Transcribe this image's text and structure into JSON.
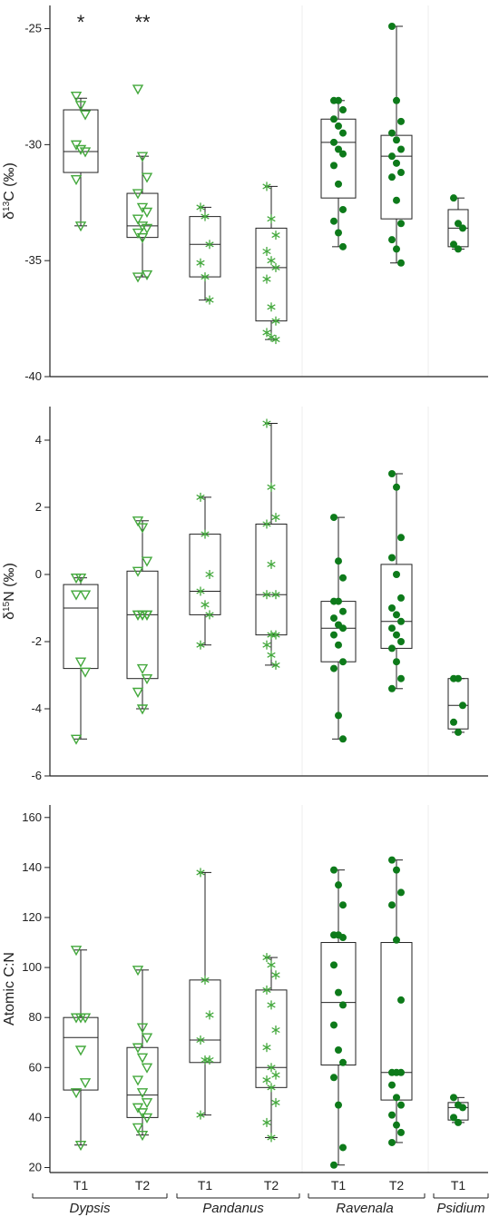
{
  "colors": {
    "light_green": "#43a83c",
    "dark_green": "#0d7a1a",
    "axis": "#222222",
    "box": "#222222",
    "divider_shade": "#ededed"
  },
  "categories": [
    {
      "time": "T1",
      "genus": "Dypsis",
      "marker": "triangle",
      "color": "light_green"
    },
    {
      "time": "T2",
      "genus": "Dypsis",
      "marker": "triangle",
      "color": "light_green"
    },
    {
      "time": "T1",
      "genus": "Pandanus",
      "marker": "asterisk",
      "color": "light_green"
    },
    {
      "time": "T2",
      "genus": "Pandanus",
      "marker": "asterisk",
      "color": "light_green"
    },
    {
      "time": "T1",
      "genus": "Ravenala",
      "marker": "dot",
      "color": "dark_green"
    },
    {
      "time": "T2",
      "genus": "Ravenala",
      "marker": "dot",
      "color": "dark_green"
    },
    {
      "time": "T1",
      "genus": "Psidium",
      "marker": "dot",
      "color": "dark_green"
    }
  ],
  "x_axis": {
    "time_labels": [
      "T1",
      "T2",
      "T1",
      "T2",
      "T1",
      "T2",
      "T1"
    ],
    "genus_labels": [
      "Dypsis",
      "Pandanus",
      "Ravenala",
      "Psidium"
    ]
  },
  "chart_data": [
    {
      "type": "box",
      "ylabel": "δ13C (‰)",
      "ylabel_main": "δ",
      "ylabel_sup": "13",
      "ylabel_rest": "C (‰)",
      "ylim": [
        -40,
        -24
      ],
      "ticks": [
        -25,
        -30,
        -35,
        -40
      ],
      "tick_labels": [
        "-25",
        "-30",
        "-35",
        "-40"
      ],
      "annotations": [
        "*",
        "**"
      ],
      "boxes": [
        {
          "min": -33.5,
          "q1": -31.2,
          "median": -30.3,
          "q3": -28.5,
          "max": -28.0,
          "points": [
            -27.9,
            -28.3,
            -28.7,
            -30.0,
            -30.2,
            -30.3,
            -31.5,
            -33.5
          ]
        },
        {
          "min": -35.7,
          "q1": -34.0,
          "median": -33.5,
          "q3": -32.1,
          "max": -30.5,
          "points": [
            -27.6,
            -30.5,
            -31.4,
            -32.1,
            -32.7,
            -32.9,
            -33.2,
            -33.5,
            -33.6,
            -33.8,
            -34.0,
            -35.6,
            -35.7
          ]
        },
        {
          "min": -36.7,
          "q1": -35.7,
          "median": -34.3,
          "q3": -33.1,
          "max": -32.7,
          "points": [
            -32.7,
            -33.1,
            -34.3,
            -35.1,
            -35.7,
            -36.7
          ]
        },
        {
          "min": -38.4,
          "q1": -37.6,
          "median": -35.3,
          "q3": -33.6,
          "max": -31.8,
          "points": [
            -31.8,
            -33.2,
            -33.9,
            -34.6,
            -35.0,
            -35.3,
            -35.8,
            -37.0,
            -37.6,
            -38.1,
            -38.3,
            -38.4
          ]
        },
        {
          "min": -34.4,
          "q1": -32.3,
          "median": -29.9,
          "q3": -28.9,
          "max": -28.1,
          "points": [
            -28.1,
            -28.1,
            -28.5,
            -28.9,
            -29.2,
            -29.5,
            -29.9,
            -30.2,
            -30.4,
            -30.9,
            -31.7,
            -32.8,
            -33.3,
            -33.8,
            -34.4
          ]
        },
        {
          "min": -35.1,
          "q1": -33.2,
          "median": -30.5,
          "q3": -29.6,
          "max": -24.9,
          "points": [
            -24.9,
            -28.1,
            -29.0,
            -29.5,
            -29.8,
            -30.2,
            -30.5,
            -30.8,
            -31.2,
            -31.4,
            -32.4,
            -33.4,
            -34.1,
            -34.5,
            -35.1
          ]
        },
        {
          "min": -34.5,
          "q1": -34.4,
          "median": -33.6,
          "q3": -32.8,
          "max": -32.3,
          "points": [
            -32.3,
            -33.4,
            -33.6,
            -34.3,
            -34.5
          ]
        }
      ]
    },
    {
      "type": "box",
      "ylabel": "δ15N (‰)",
      "ylabel_main": "δ",
      "ylabel_sup": "15",
      "ylabel_rest": "N (‰)",
      "ylim": [
        -6,
        5
      ],
      "ticks": [
        4,
        2,
        0,
        -2,
        -4,
        -6
      ],
      "tick_labels": [
        "4",
        "2",
        "0",
        "-2",
        "-4",
        "-6"
      ],
      "boxes": [
        {
          "min": -4.9,
          "q1": -2.8,
          "median": -1.0,
          "q3": -0.3,
          "max": -0.1,
          "points": [
            -0.1,
            -0.1,
            -0.6,
            -0.6,
            -2.6,
            -2.9,
            -4.9
          ]
        },
        {
          "min": -4.0,
          "q1": -3.1,
          "median": -1.2,
          "q3": 0.1,
          "max": 1.6,
          "points": [
            1.6,
            1.4,
            0.4,
            0.1,
            -1.2,
            -1.2,
            -1.2,
            -1.2,
            -1.2,
            -1.2,
            -2.8,
            -3.1,
            -3.5,
            -4.0
          ]
        },
        {
          "min": -2.1,
          "q1": -1.2,
          "median": -0.5,
          "q3": 1.2,
          "max": 2.3,
          "points": [
            2.3,
            1.2,
            0.0,
            -0.5,
            -0.9,
            -1.2,
            -2.1
          ]
        },
        {
          "min": -2.7,
          "q1": -1.8,
          "median": -0.6,
          "q3": 1.5,
          "max": 4.5,
          "points": [
            4.5,
            2.6,
            1.7,
            1.5,
            0.3,
            -0.6,
            -0.6,
            -1.8,
            -1.8,
            -2.1,
            -2.4,
            -2.7
          ]
        },
        {
          "min": -4.9,
          "q1": -2.6,
          "median": -1.6,
          "q3": -0.8,
          "max": 1.7,
          "points": [
            1.7,
            0.4,
            -0.1,
            -0.8,
            -0.8,
            -1.1,
            -1.3,
            -1.5,
            -1.6,
            -1.8,
            -2.1,
            -2.6,
            -2.8,
            -4.2,
            -4.9
          ]
        },
        {
          "min": -3.4,
          "q1": -2.2,
          "median": -1.4,
          "q3": 0.3,
          "max": 3.0,
          "points": [
            3.0,
            2.6,
            1.1,
            0.5,
            0.0,
            -0.7,
            -1.0,
            -1.2,
            -1.4,
            -1.6,
            -1.8,
            -2.0,
            -2.2,
            -2.6,
            -3.1,
            -3.4
          ]
        },
        {
          "min": -4.7,
          "q1": -4.6,
          "median": -3.9,
          "q3": -3.1,
          "max": -3.1,
          "points": [
            -3.1,
            -3.1,
            -3.9,
            -4.4,
            -4.7
          ]
        }
      ]
    },
    {
      "type": "box",
      "ylabel": "Atomic C:N",
      "ylim": [
        18,
        165
      ],
      "ticks": [
        160,
        140,
        120,
        100,
        80,
        60,
        40,
        20
      ],
      "tick_labels": [
        "160",
        "140",
        "120",
        "100",
        "80",
        "60",
        "40",
        "20"
      ],
      "boxes": [
        {
          "min": 29,
          "q1": 51,
          "median": 72,
          "q3": 80,
          "max": 107,
          "points": [
            107,
            80,
            80,
            80,
            67,
            54,
            50,
            29
          ]
        },
        {
          "min": 33,
          "q1": 40,
          "median": 49,
          "q3": 68,
          "max": 99,
          "points": [
            99,
            76,
            72,
            68,
            64,
            60,
            55,
            50,
            46,
            44,
            42,
            40,
            36,
            33
          ]
        },
        {
          "min": 41,
          "q1": 62,
          "median": 71,
          "q3": 95,
          "max": 138,
          "points": [
            138,
            95,
            81,
            71,
            63,
            63,
            41
          ]
        },
        {
          "min": 32,
          "q1": 52,
          "median": 60,
          "q3": 91,
          "max": 104,
          "points": [
            104,
            101,
            97,
            91,
            85,
            75,
            68,
            60,
            57,
            55,
            52,
            46,
            38,
            32
          ]
        },
        {
          "min": 21,
          "q1": 61,
          "median": 86,
          "q3": 110,
          "max": 139,
          "points": [
            139,
            133,
            125,
            113,
            113,
            112,
            101,
            90,
            85,
            77,
            67,
            62,
            56,
            45,
            28,
            21
          ]
        },
        {
          "min": 30,
          "q1": 47,
          "median": 58,
          "q3": 110,
          "max": 143,
          "points": [
            143,
            139,
            130,
            125,
            111,
            87,
            58,
            58,
            58,
            53,
            48,
            45,
            41,
            37,
            34,
            30
          ]
        },
        {
          "min": 38,
          "q1": 39,
          "median": 44,
          "q3": 46,
          "max": 48,
          "points": [
            48,
            45,
            44,
            40,
            38
          ]
        }
      ]
    }
  ]
}
